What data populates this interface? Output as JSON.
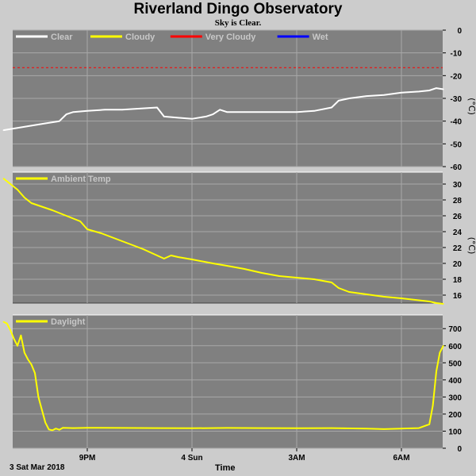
{
  "title": "Riverland Dingo Observatory",
  "subtitle": "Sky is Clear.",
  "x_axis": {
    "label": "Time",
    "date_label": "3 Sat Mar 2018",
    "ticks": [
      {
        "hour": 21,
        "label": "9PM"
      },
      {
        "hour": 24,
        "label": "4 Sun"
      },
      {
        "hour": 27,
        "label": "3AM"
      },
      {
        "hour": 30,
        "label": "6AM"
      }
    ]
  },
  "colors": {
    "background": "#cccccc",
    "panel": "#808080",
    "grid": "#a8a8a8",
    "clear": "#ffffff",
    "cloudy": "#ffff00",
    "very_cloudy": "#ff0000",
    "wet": "#0000ff"
  },
  "chart_data": [
    {
      "type": "line",
      "panel": "sky",
      "legend": [
        {
          "name": "Clear",
          "color": "#ffffff"
        },
        {
          "name": "Cloudy",
          "color": "#ffff00"
        },
        {
          "name": "Very Cloudy",
          "color": "#ff0000"
        },
        {
          "name": "Wet",
          "color": "#0000ff"
        }
      ],
      "unit": "(°C)",
      "ylim": [
        -60,
        0
      ],
      "yticks": [
        0,
        -10,
        -20,
        -30,
        -40,
        -50,
        -60
      ],
      "xlim": [
        18.6,
        31.2
      ],
      "threshold": {
        "value": -16.5,
        "color": "#ff0000",
        "style": "dashed"
      },
      "series": [
        {
          "name": "Clear",
          "color": "#ffffff",
          "x": [
            18.6,
            19.0,
            19.4,
            19.8,
            20.2,
            20.4,
            20.6,
            21.0,
            21.5,
            22.0,
            22.5,
            23.0,
            23.2,
            23.6,
            24.0,
            24.4,
            24.6,
            24.8,
            25.0,
            25.5,
            26.0,
            26.5,
            27.0,
            27.5,
            28.0,
            28.2,
            28.5,
            29.0,
            29.5,
            30.0,
            30.5,
            30.8,
            31.0,
            31.2
          ],
          "y": [
            -44,
            -43,
            -42,
            -41,
            -40,
            -37,
            -36,
            -35.5,
            -35,
            -35,
            -34.5,
            -34,
            -38,
            -38.5,
            -39,
            -38,
            -37,
            -35,
            -36,
            -36,
            -36,
            -36,
            -36,
            -35.5,
            -34,
            -31,
            -30,
            -29,
            -28.5,
            -27.5,
            -27,
            -26.5,
            -25.5,
            -26
          ]
        }
      ]
    },
    {
      "type": "line",
      "panel": "ambient",
      "legend": [
        {
          "name": "Ambient Temp",
          "color": "#ffff00"
        }
      ],
      "unit": "(°C)",
      "ylim": [
        15,
        31.5
      ],
      "yticks": [
        16,
        18,
        20,
        22,
        24,
        26,
        28,
        30
      ],
      "xlim": [
        18.6,
        31.2
      ],
      "series": [
        {
          "name": "Ambient Temp",
          "color": "#ffff00",
          "x": [
            18.6,
            18.8,
            19.0,
            19.2,
            19.4,
            19.6,
            20.0,
            20.4,
            20.8,
            21.0,
            21.4,
            22.0,
            22.6,
            23.2,
            23.4,
            23.6,
            24.0,
            24.6,
            25.0,
            25.5,
            26.0,
            26.5,
            27.0,
            27.5,
            28.0,
            28.2,
            28.5,
            29.0,
            29.5,
            30.0,
            30.4,
            30.8,
            31.0,
            31.2
          ],
          "y": [
            30.7,
            30.0,
            29.3,
            28.3,
            27.6,
            27.3,
            26.7,
            26.0,
            25.3,
            24.3,
            23.8,
            22.8,
            21.8,
            20.6,
            21.0,
            20.8,
            20.5,
            20.0,
            19.7,
            19.3,
            18.8,
            18.4,
            18.2,
            18.0,
            17.6,
            16.9,
            16.4,
            16.1,
            15.8,
            15.6,
            15.4,
            15.2,
            15.0,
            14.9
          ]
        }
      ]
    },
    {
      "type": "line",
      "panel": "daylight",
      "legend": [
        {
          "name": "Daylight",
          "color": "#ffff00"
        }
      ],
      "unit": "",
      "ylim": [
        0,
        780
      ],
      "yticks": [
        0,
        100,
        200,
        300,
        400,
        500,
        600,
        700
      ],
      "xlim": [
        18.6,
        31.2
      ],
      "series": [
        {
          "name": "Daylight",
          "color": "#ffff00",
          "x": [
            18.6,
            18.7,
            18.8,
            18.9,
            19.0,
            19.1,
            19.2,
            19.3,
            19.4,
            19.5,
            19.6,
            19.8,
            19.9,
            20.0,
            20.1,
            20.2,
            20.3,
            20.6,
            21.0,
            22.0,
            23.0,
            24.0,
            25.0,
            26.0,
            27.0,
            28.0,
            29.0,
            29.5,
            30.0,
            30.5,
            30.8,
            30.9,
            31.0,
            31.1,
            31.2
          ],
          "y": [
            740,
            730,
            690,
            640,
            600,
            660,
            560,
            520,
            490,
            440,
            300,
            150,
            110,
            105,
            115,
            108,
            120,
            118,
            120,
            119,
            118,
            117,
            119,
            118,
            117,
            118,
            115,
            112,
            115,
            118,
            140,
            250,
            450,
            560,
            600
          ]
        }
      ]
    }
  ]
}
